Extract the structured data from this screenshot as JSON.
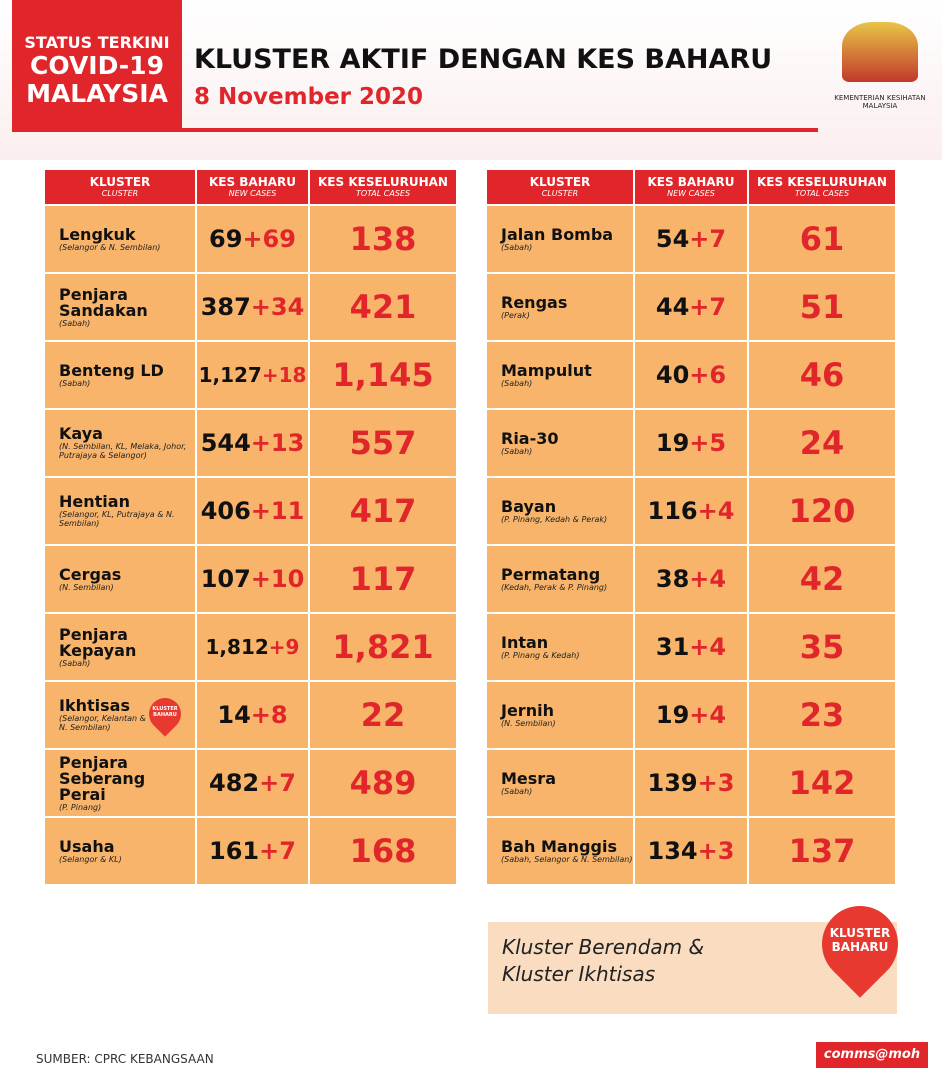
{
  "badge": {
    "line1": "STATUS TERKINI",
    "line2": "COVID-19",
    "line3": "MALAYSIA"
  },
  "header": {
    "title": "KLUSTER AKTIF DENGAN KES BAHARU",
    "date": "8 November 2020",
    "ministry": "KEMENTERIAN KESIHATAN MALAYSIA"
  },
  "columns": {
    "cluster": "KLUSTER",
    "cluster_en": "CLUSTER",
    "new": "KES BAHARU",
    "new_en": "NEW CASES",
    "total": "KES KESELURUHAN",
    "total_en": "TOTAL CASES"
  },
  "new_cluster_tag": "KLUSTER BAHARU",
  "tables": [
    {
      "rows": [
        {
          "name": "Lengkuk",
          "location": "(Selangor & N. Sembilan)",
          "previous": "69",
          "new": "+69",
          "total": "138"
        },
        {
          "name": "Penjara Sandakan",
          "location": "(Sabah)",
          "previous": "387",
          "new": "+34",
          "total": "421"
        },
        {
          "name": "Benteng LD",
          "location": "(Sabah)",
          "previous": "1,127",
          "new": "+18",
          "total": "1,145"
        },
        {
          "name": "Kaya",
          "location": "(N. Sembilan, KL, Melaka, Johor, Putrajaya & Selangor)",
          "previous": "544",
          "new": "+13",
          "total": "557"
        },
        {
          "name": "Hentian",
          "location": "(Selangor, KL, Putrajaya & N. Sembilan)",
          "previous": "406",
          "new": "+11",
          "total": "417"
        },
        {
          "name": "Cergas",
          "location": "(N. Sembilan)",
          "previous": "107",
          "new": "+10",
          "total": "117"
        },
        {
          "name": "Penjara Kepayan",
          "location": "(Sabah)",
          "previous": "1,812",
          "new": "+9",
          "total": "1,821"
        },
        {
          "name": "Ikhtisas",
          "location": "(Selangor, Kelantan & N. Sembilan)",
          "previous": "14",
          "new": "+8",
          "total": "22",
          "tag": true
        },
        {
          "name": "Penjara Seberang Perai",
          "location": "(P. Pinang)",
          "previous": "482",
          "new": "+7",
          "total": "489"
        },
        {
          "name": "Usaha",
          "location": "(Selangor & KL)",
          "previous": "161",
          "new": "+7",
          "total": "168"
        }
      ]
    },
    {
      "rows": [
        {
          "name": "Jalan Bomba",
          "location": "(Sabah)",
          "previous": "54",
          "new": "+7",
          "total": "61"
        },
        {
          "name": "Rengas",
          "location": "(Perak)",
          "previous": "44",
          "new": "+7",
          "total": "51"
        },
        {
          "name": "Mampulut",
          "location": "(Sabah)",
          "previous": "40",
          "new": "+6",
          "total": "46"
        },
        {
          "name": "Ria-30",
          "location": "(Sabah)",
          "previous": "19",
          "new": "+5",
          "total": "24"
        },
        {
          "name": "Bayan",
          "location": "(P. Pinang, Kedah & Perak)",
          "previous": "116",
          "new": "+4",
          "total": "120"
        },
        {
          "name": "Permatang",
          "location": "(Kedah, Perak & P. Pinang)",
          "previous": "38",
          "new": "+4",
          "total": "42"
        },
        {
          "name": "Intan",
          "location": "(P. Pinang & Kedah)",
          "previous": "31",
          "new": "+4",
          "total": "35"
        },
        {
          "name": "Jernih",
          "location": "(N. Sembilan)",
          "previous": "19",
          "new": "+4",
          "total": "23"
        },
        {
          "name": "Mesra",
          "location": "(Sabah)",
          "previous": "139",
          "new": "+3",
          "total": "142"
        },
        {
          "name": "Bah Manggis",
          "location": "(Sabah, Selangor & N. Sembilan)",
          "previous": "134",
          "new": "+3",
          "total": "137"
        }
      ]
    }
  ],
  "note": {
    "line1": "Kluster Berendam &",
    "line2": "Kluster Ikhtisas",
    "tag": "KLUSTER BAHARU"
  },
  "footer": {
    "source": "SUMBER: CPRC KEBANGSAAN",
    "brand": "comms@moh"
  }
}
